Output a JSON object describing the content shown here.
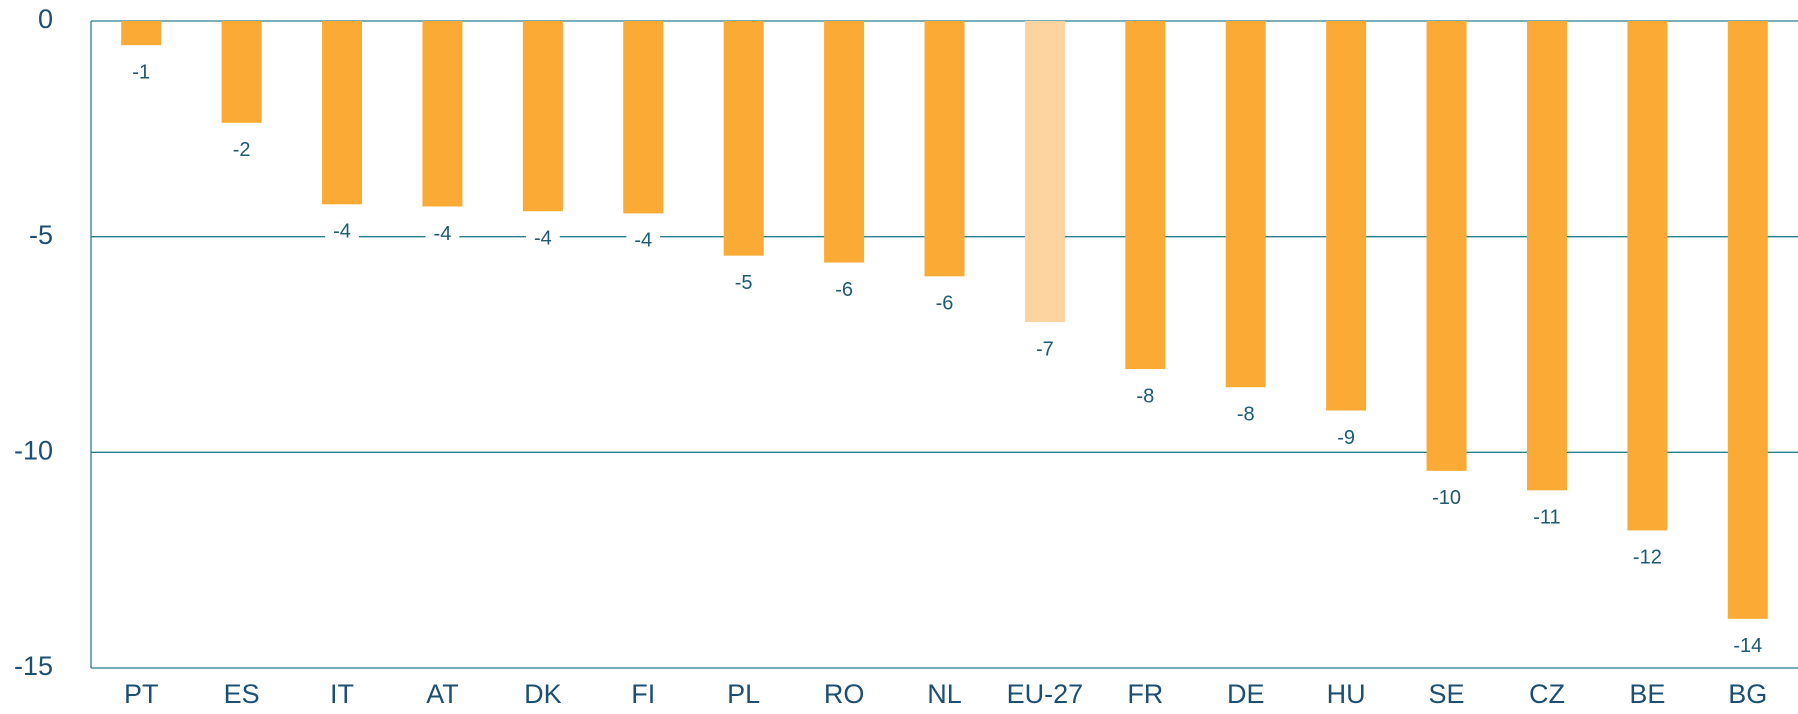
{
  "chart_data": {
    "type": "bar",
    "categories": [
      "PT",
      "ES",
      "IT",
      "AT",
      "DK",
      "FI",
      "PL",
      "RO",
      "NL",
      "EU-27",
      "FR",
      "DE",
      "HU",
      "SE",
      "CZ",
      "BE",
      "BG"
    ],
    "values": [
      -0.56,
      -2.36,
      -4.25,
      -4.3,
      -4.41,
      -4.46,
      -5.44,
      -5.6,
      -5.92,
      -6.98,
      -8.07,
      -8.49,
      -9.03,
      -10.43,
      -10.88,
      -11.81,
      -13.86
    ],
    "value_labels": [
      "-1",
      "-2",
      "-4",
      "-4",
      "-4",
      "-4",
      "-5",
      "-6",
      "-6",
      "-7",
      "-8",
      "-8",
      "-9",
      "-10",
      "-11",
      "-12",
      "-14"
    ],
    "colors": [
      "#fbab35",
      "#fbab35",
      "#fbab35",
      "#fbab35",
      "#fbab35",
      "#fbab35",
      "#fbab35",
      "#fbab35",
      "#fbab35",
      "#fdd3a0",
      "#fbab35",
      "#fbab35",
      "#fbab35",
      "#fbab35",
      "#fbab35",
      "#fbab35",
      "#fbab35"
    ],
    "ylim": [
      -15,
      0
    ],
    "yticks": [
      0,
      -5,
      -10,
      -15
    ],
    "grid": true
  }
}
